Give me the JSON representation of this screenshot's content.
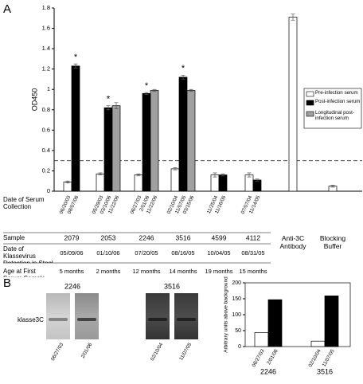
{
  "panel_labels": [
    "A",
    "B"
  ],
  "chart_data": [
    {
      "type": "bar",
      "y_label": "OD450",
      "categories": [
        "2079",
        "2053",
        "2246",
        "3516",
        "4599",
        "4112",
        "Anti-3C Antibody",
        "Blocking Buffer"
      ],
      "series": [
        {
          "name": "Pre-infection serum",
          "color": "#ffffff",
          "values": [
            0.09,
            0.17,
            0.16,
            0.22,
            0.16,
            0.16,
            1.71,
            0.05
          ],
          "errors": [
            0.01,
            0.01,
            0.01,
            0.01,
            0.02,
            0.02,
            0.03,
            0.01
          ]
        },
        {
          "name": "Post-infection serum",
          "color": "#000000",
          "values": [
            1.23,
            0.82,
            0.96,
            1.12,
            0.16,
            0.11,
            null,
            null
          ],
          "errors": [
            0.02,
            0.02,
            0.01,
            0.02,
            0.01,
            0.01,
            null,
            null
          ]
        },
        {
          "name": "Longitudinal post-infection serum",
          "color": "#a0a0a0",
          "values": [
            null,
            0.84,
            0.99,
            0.99,
            null,
            null,
            null,
            null
          ],
          "errors": [
            null,
            0.03,
            0.01,
            0.01,
            null,
            null,
            null,
            null
          ]
        }
      ],
      "annotations": [
        {
          "text": "*",
          "category": 0
        },
        {
          "text": "*",
          "category": 1
        },
        {
          "text": "*",
          "category": 2
        },
        {
          "text": "*",
          "category": 3
        }
      ],
      "threshold": 0.3,
      "ylim": [
        0,
        1.8
      ],
      "yticks": [
        0,
        0.2,
        0.4,
        0.6,
        0.8,
        1,
        1.2,
        1.4,
        1.6,
        1.8
      ],
      "table": {
        "row_labels": [
          "Date of Serum Collection",
          "Sample",
          "Date of Klassevirus Detection in Stool",
          "Age at First Serum Sample"
        ],
        "serum_dates": [
          [
            "06/20/03",
            "08/07/06"
          ],
          [
            "05/29/03",
            "03/10/06",
            "11/22/06"
          ],
          [
            "06/27/03",
            "2/01/06",
            "11/22/06"
          ],
          [
            "02/10/04",
            "11/07/05",
            "03/15/06"
          ],
          [
            "11/25/04",
            "11/16/05"
          ],
          [
            "07/07/04",
            "11/14/05"
          ]
        ],
        "detection_dates": [
          "05/09/06",
          "01/10/06",
          "07/20/05",
          "08/16/05",
          "10/04/05",
          "08/31/05"
        ],
        "ages": [
          "5 months",
          "2 months",
          "12 months",
          "14 months",
          "19 months",
          "15 months"
        ]
      }
    },
    {
      "type": "bar",
      "y_label": "Arbitrary units above background",
      "categories": [
        "2246",
        "3516"
      ],
      "series": [
        {
          "color": "#ffffff",
          "values": [
            44,
            17
          ],
          "labels": [
            "06/27/03",
            "02/10/04"
          ]
        },
        {
          "color": "#000000",
          "values": [
            147,
            159
          ],
          "labels": [
            "2/01/06",
            "11/07/05"
          ]
        }
      ],
      "ylim": [
        0,
        200
      ],
      "yticks": [
        0,
        50,
        100,
        150,
        200
      ]
    }
  ],
  "blots": {
    "band_label": "klasse3C",
    "samples": [
      {
        "sample": "2246",
        "lanes": [
          "06/27/03",
          "2/01/06"
        ]
      },
      {
        "sample": "3516",
        "lanes": [
          "02/10/04",
          "11/07/05"
        ]
      }
    ]
  }
}
